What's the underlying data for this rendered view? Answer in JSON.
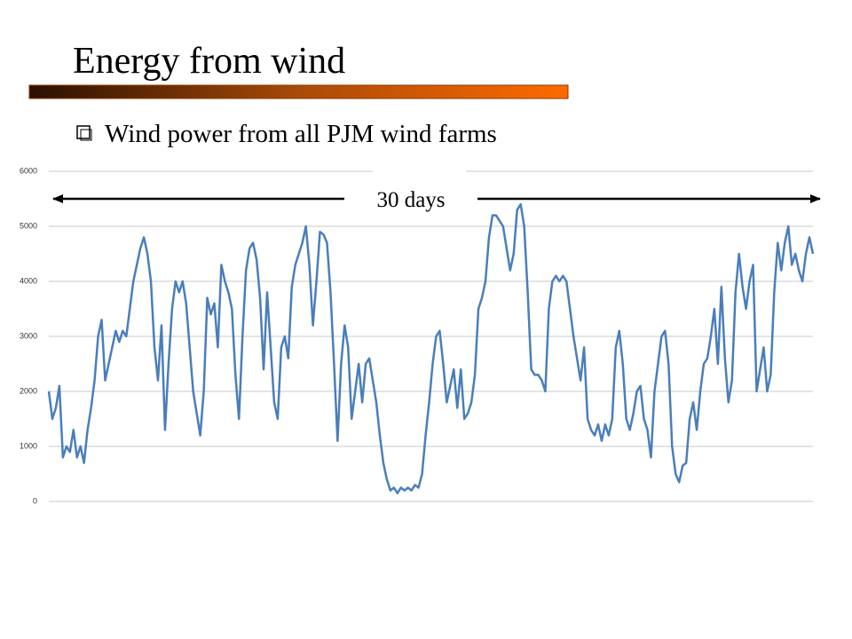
{
  "chart_data": {
    "type": "line",
    "title": "Energy from wind",
    "subtitle": "Wind power from all PJM wind farms",
    "annotation": "30 days",
    "color": "#4a7ebb",
    "ylim": [
      0,
      6000
    ],
    "yticks": [
      0,
      1000,
      2000,
      3000,
      4000,
      5000,
      6000
    ],
    "grid": true,
    "values": [
      2000,
      1500,
      1700,
      2100,
      800,
      1000,
      900,
      1300,
      800,
      1000,
      700,
      1300,
      1700,
      2200,
      3000,
      3300,
      2200,
      2500,
      2800,
      3100,
      2900,
      3100,
      3000,
      3500,
      4000,
      4300,
      4600,
      4800,
      4500,
      4000,
      2800,
      2200,
      3200,
      1300,
      2500,
      3500,
      4000,
      3800,
      4000,
      3600,
      2800,
      2000,
      1600,
      1200,
      2000,
      3700,
      3400,
      3600,
      2800,
      4300,
      4000,
      3800,
      3500,
      2300,
      1500,
      3000,
      4200,
      4600,
      4700,
      4400,
      3700,
      2400,
      3800,
      2800,
      1800,
      1500,
      2800,
      3000,
      2600,
      3900,
      4300,
      4500,
      4700,
      5000,
      4300,
      3200,
      4000,
      4900,
      4850,
      4700,
      3800,
      2500,
      1100,
      2500,
      3200,
      2800,
      1500,
      2000,
      2500,
      1800,
      2500,
      2600,
      2200,
      1800,
      1200,
      700,
      400,
      200,
      250,
      150,
      250,
      200,
      250,
      200,
      300,
      250,
      500,
      1200,
      1800,
      2500,
      3000,
      3100,
      2500,
      1800,
      2100,
      2400,
      1700,
      2400,
      1500,
      1600,
      1800,
      2300,
      3500,
      3700,
      4000,
      4800,
      5200,
      5200,
      5100,
      5000,
      4600,
      4200,
      4500,
      5300,
      5400,
      5000,
      3800,
      2400,
      2300,
      2300,
      2200,
      2000,
      3500,
      4000,
      4100,
      4000,
      4100,
      4000,
      3500,
      3000,
      2600,
      2200,
      2800,
      1500,
      1300,
      1200,
      1400,
      1100,
      1400,
      1200,
      1500,
      2800,
      3100,
      2500,
      1500,
      1300,
      1600,
      2000,
      2100,
      1500,
      1300,
      800,
      2000,
      2500,
      3000,
      3100,
      2500,
      1000,
      500,
      350,
      650,
      700,
      1500,
      1800,
      1300,
      2000,
      2500,
      2600,
      3000,
      3500,
      2500,
      3900,
      2600,
      1800,
      2200,
      3800,
      4500,
      3900,
      3500,
      4000,
      4300,
      2000,
      2400,
      2800,
      2000,
      2300,
      3800,
      4700,
      4200,
      4700,
      5000,
      4300,
      4500,
      4200,
      4000,
      4500,
      4800,
      4500
    ]
  }
}
